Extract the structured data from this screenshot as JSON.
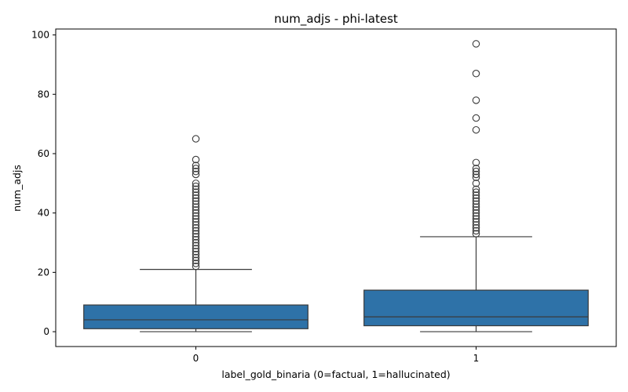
{
  "chart_data": {
    "type": "box",
    "title": "num_adjs - phi-latest",
    "xlabel": "label_gold_binaria (0=factual, 1=hallucinated)",
    "ylabel": "num_adjs",
    "ylim": [
      -5,
      102
    ],
    "yticks": [
      0,
      20,
      40,
      60,
      80,
      100
    ],
    "grid": false,
    "box_color": "#2e72a8",
    "line_color": "#3a3a3a",
    "categories": [
      "0",
      "1"
    ],
    "boxes": [
      {
        "category": "0",
        "whisker_low": 0,
        "q1": 1,
        "median": 4,
        "q3": 9,
        "whisker_high": 21,
        "outliers": [
          22,
          23,
          24,
          25,
          26,
          27,
          28,
          29,
          30,
          31,
          32,
          33,
          34,
          35,
          36,
          37,
          38,
          39,
          40,
          41,
          42,
          43,
          44,
          45,
          46,
          47,
          48,
          49,
          50,
          53,
          54,
          55,
          56,
          58,
          65
        ]
      },
      {
        "category": "1",
        "whisker_low": 0,
        "q1": 2,
        "median": 5,
        "q3": 14,
        "whisker_high": 32,
        "outliers": [
          33,
          34,
          35,
          36,
          37,
          38,
          39,
          40,
          41,
          42,
          43,
          44,
          45,
          46,
          47,
          48,
          50,
          52,
          53,
          54,
          55,
          57,
          68,
          72,
          78,
          87,
          97
        ]
      }
    ]
  }
}
